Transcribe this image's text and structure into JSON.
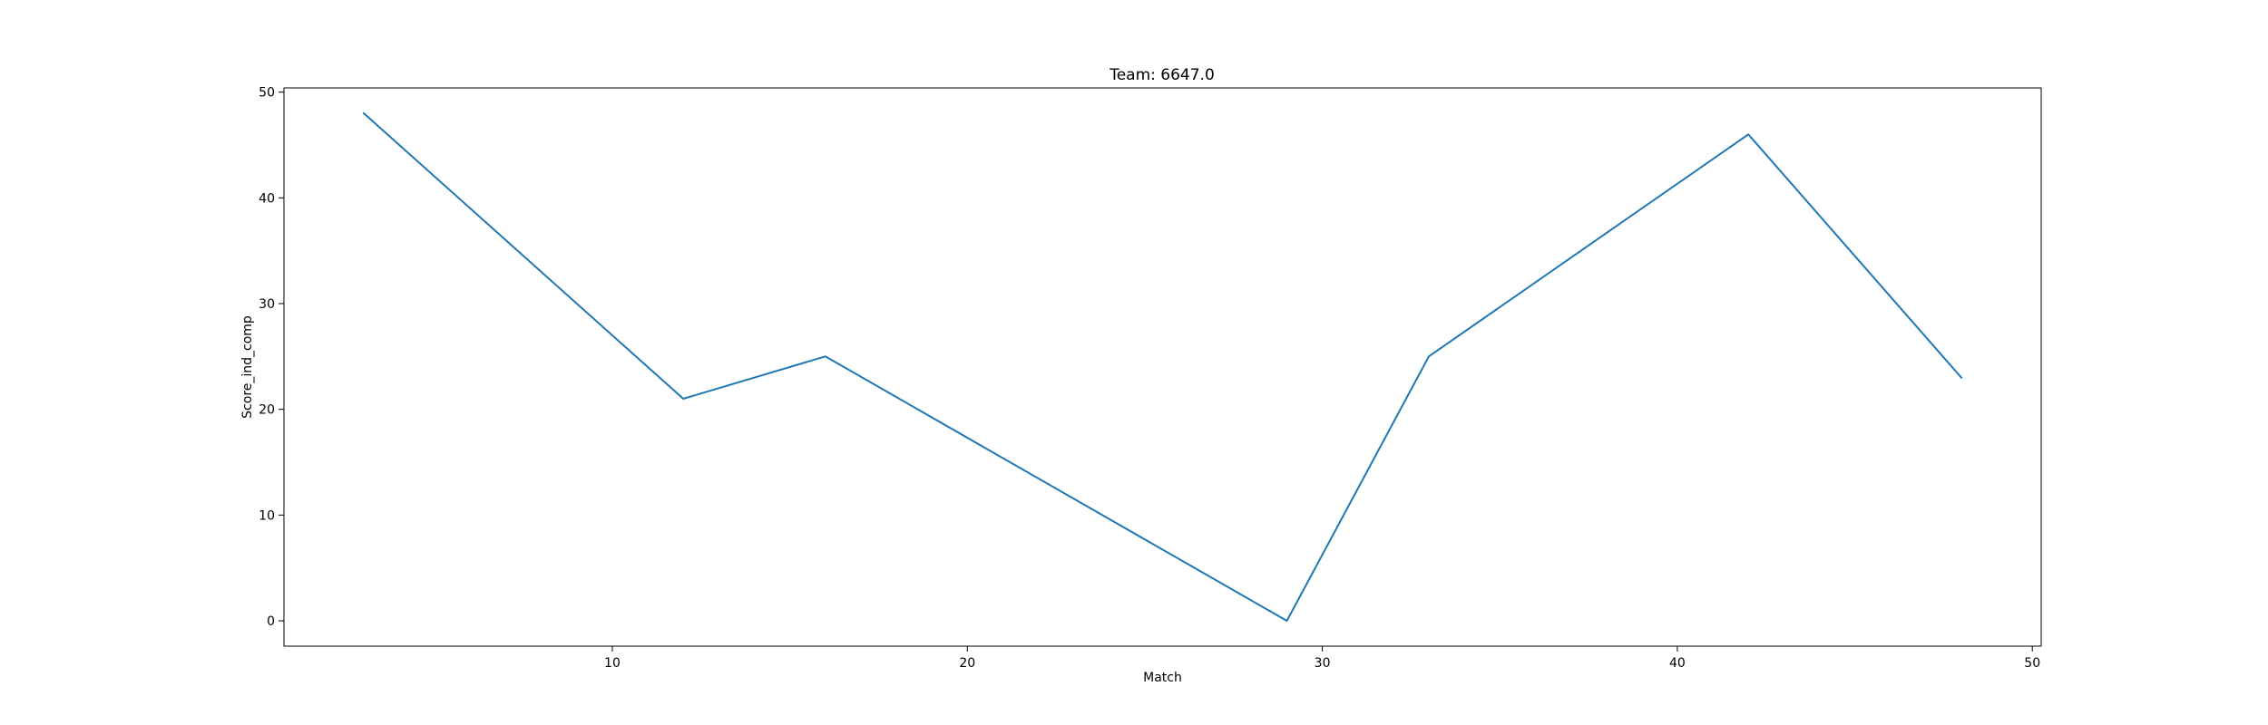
{
  "chart_data": {
    "type": "line",
    "title": "Team: 6647.0",
    "xlabel": "Match",
    "ylabel": "Score_ind_comp",
    "xlim": [
      0.75,
      50.25
    ],
    "ylim": [
      -2.4,
      50.4
    ],
    "xticks": [
      10,
      20,
      30,
      40,
      50
    ],
    "yticks": [
      0,
      10,
      20,
      30,
      40,
      50
    ],
    "grid": false,
    "series": [
      {
        "color": "#1f77b4",
        "x": [
          3,
          12,
          16,
          29,
          33,
          42,
          48
        ],
        "y": [
          48,
          21,
          25,
          0,
          25,
          46,
          23
        ]
      }
    ]
  }
}
